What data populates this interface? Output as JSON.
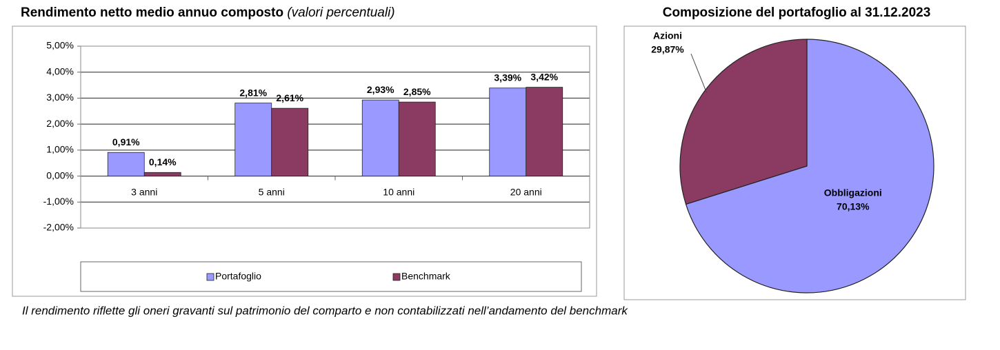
{
  "chart_data": [
    {
      "type": "bar",
      "title": "Rendimento netto medio annuo composto",
      "subtitle": "(valori percentuali)",
      "categories": [
        "3 anni",
        "5 anni",
        "10 anni",
        "20 anni"
      ],
      "series": [
        {
          "name": "Portafoglio",
          "color": "#9999ff",
          "values": [
            0.91,
            2.81,
            2.93,
            3.39
          ],
          "value_labels": [
            "0,91%",
            "2,81%",
            "2,93%",
            "3,39%"
          ]
        },
        {
          "name": "Benchmark",
          "color": "#8b3a62",
          "values": [
            0.14,
            2.61,
            2.85,
            3.42
          ],
          "value_labels": [
            "0,14%",
            "2,61%",
            "2,85%",
            "3,42%"
          ]
        }
      ],
      "ylim": [
        -2,
        5
      ],
      "yticks": [
        {
          "value": -2,
          "label": "-2,00%"
        },
        {
          "value": -1,
          "label": "-1,00%"
        },
        {
          "value": 0,
          "label": "0,00%"
        },
        {
          "value": 1,
          "label": "1,00%"
        },
        {
          "value": 2,
          "label": "2,00%"
        },
        {
          "value": 3,
          "label": "3,00%"
        },
        {
          "value": 4,
          "label": "4,00%"
        },
        {
          "value": 5,
          "label": "5,00%"
        }
      ],
      "grid": true,
      "legend": "bottom"
    },
    {
      "type": "pie",
      "title": "Composizione del portafoglio al 31.12.2023",
      "categories": [
        "Obbligazioni",
        "Azioni"
      ],
      "values": [
        70.13,
        29.87
      ],
      "value_labels": [
        "70,13%",
        "29,87%"
      ],
      "colors": [
        "#9999ff",
        "#8b3a62"
      ]
    }
  ],
  "footnote": "Il rendimento riflette gli oneri gravanti sul patrimonio del comparto e non contabilizzati nell’andamento del benchmark"
}
